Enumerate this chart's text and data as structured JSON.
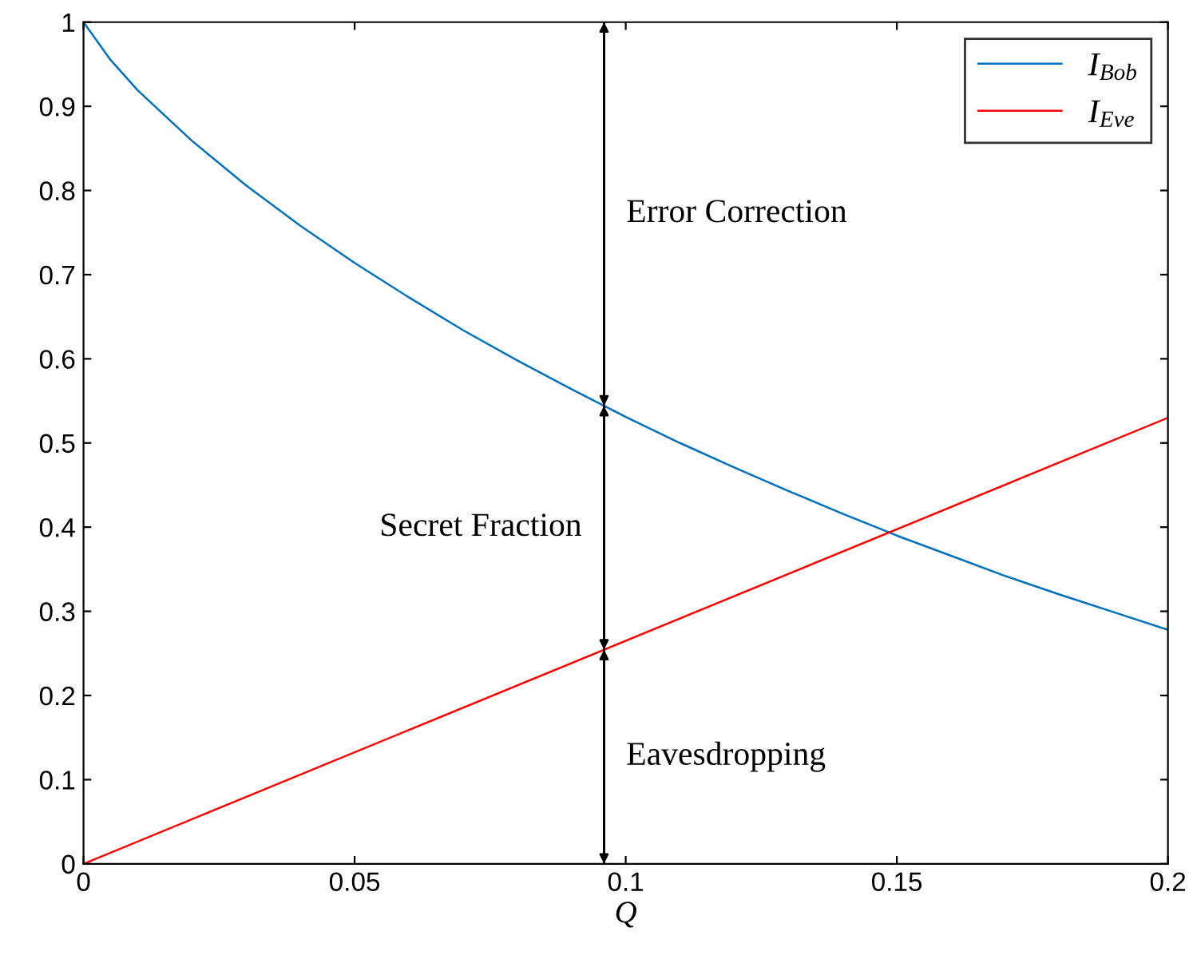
{
  "chart_data": {
    "type": "line",
    "xlabel": "Q",
    "x": [
      0,
      0.005,
      0.01,
      0.02,
      0.03,
      0.04,
      0.05,
      0.06,
      0.07,
      0.08,
      0.09,
      0.1,
      0.11,
      0.12,
      0.13,
      0.14,
      0.15,
      0.16,
      0.17,
      0.18,
      0.19,
      0.2
    ],
    "series": [
      {
        "name": "I$_{Bob}$",
        "color": "#0072bd",
        "values": [
          1,
          0.955,
          0.919,
          0.859,
          0.806,
          0.758,
          0.714,
          0.673,
          0.634,
          0.598,
          0.564,
          0.531,
          0.5,
          0.471,
          0.443,
          0.416,
          0.39,
          0.366,
          0.342,
          0.32,
          0.299,
          0.278
        ]
      },
      {
        "name": "I$_{Eve}$",
        "color": "#ff0000",
        "x": [
          0,
          0.2
        ],
        "values": [
          0,
          0.53
        ]
      }
    ],
    "xlim": [
      0,
      0.2
    ],
    "ylim": [
      0,
      1
    ],
    "xticks": [
      0,
      0.05,
      0.1,
      0.15,
      0.2
    ],
    "yticks": [
      0,
      0.1,
      0.2,
      0.3,
      0.4,
      0.5,
      0.6,
      0.7,
      0.8,
      0.9,
      1
    ],
    "annotations": [
      "Eavesdropping",
      "Secret Fraction",
      "Error Correction"
    ],
    "ref_lines": [
      {
        "axis": "x",
        "value": 0.096,
        "color": "#000000"
      }
    ],
    "grid": false,
    "legend": "top right",
    "marker": "none",
    "line_style": "solid"
  }
}
